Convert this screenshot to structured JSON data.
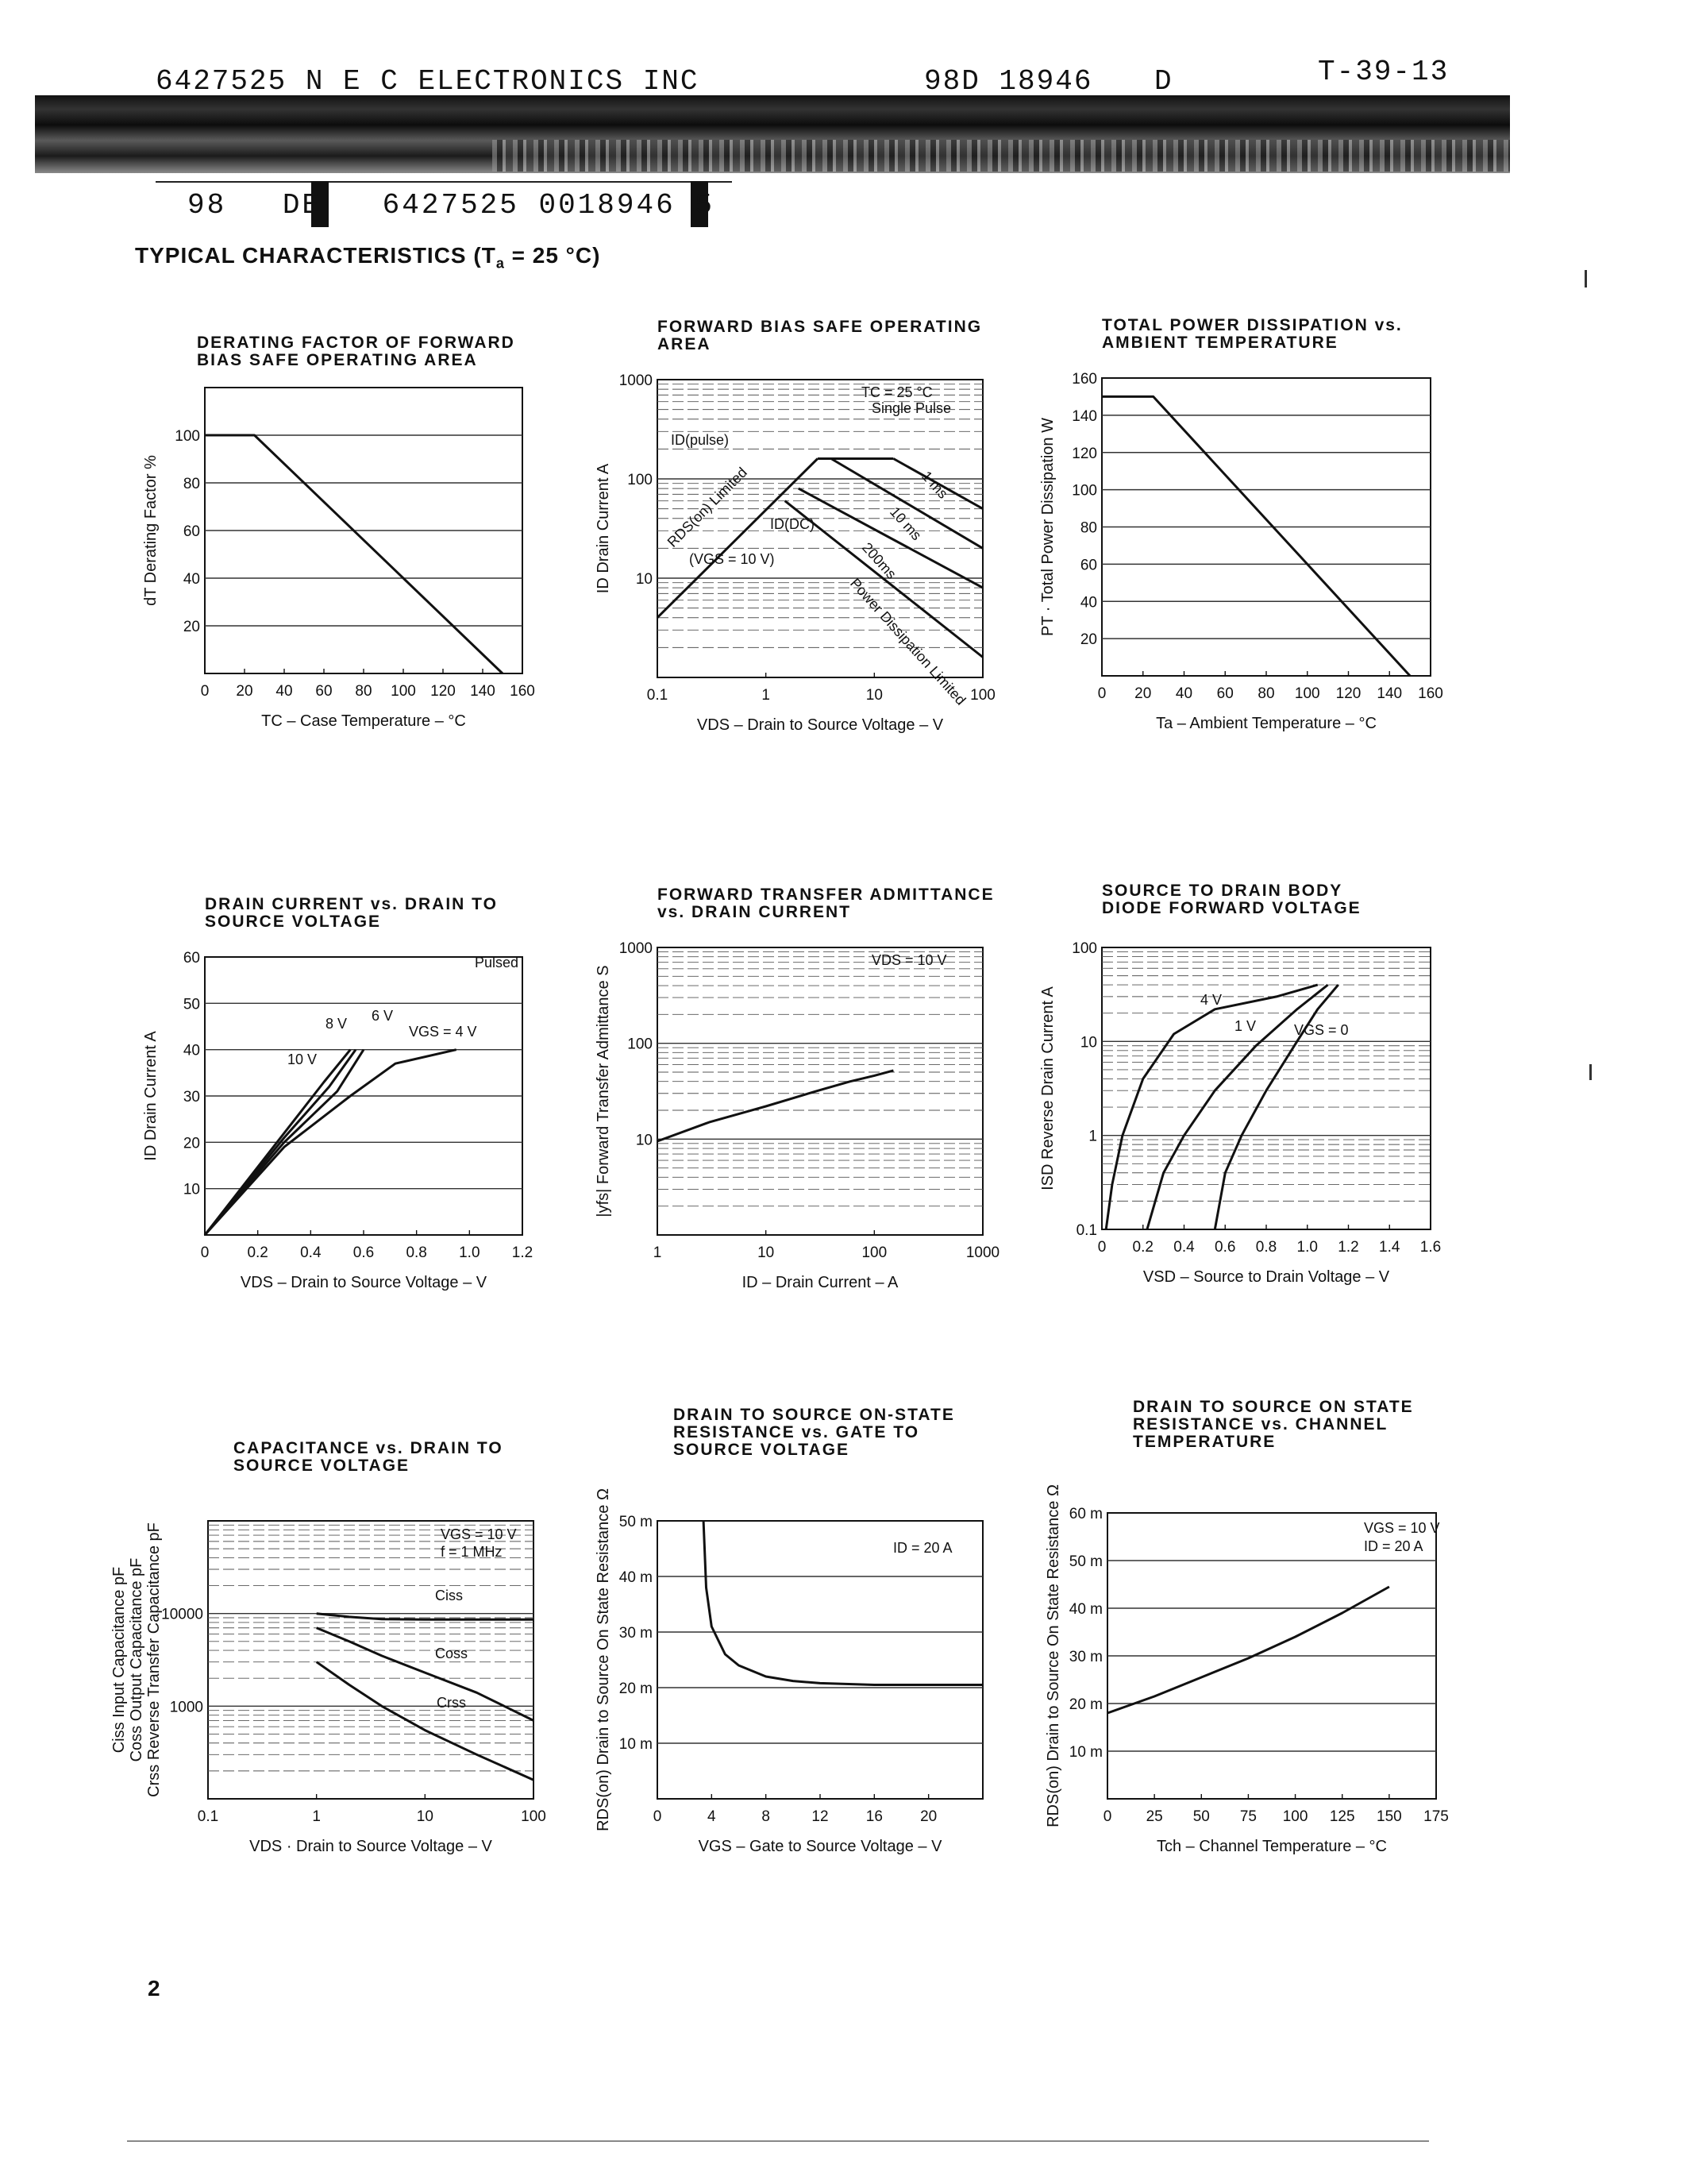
{
  "header": {
    "company": "6427525 N E C ELECTRONICS INC",
    "code": "98D 18946",
    "d": "D",
    "tcode": "T-39-13",
    "line2_a": "98",
    "line2_b": "DE",
    "line2_c": "6427525 0018946 5"
  },
  "section_title": "TYPICAL CHARACTERISTICS (T",
  "section_sub": "a",
  "section_tail": " = 25 °C)",
  "page_number": "2",
  "chart_data": [
    {
      "type": "line",
      "title": [
        "DERATING FACTOR OF FORWARD",
        "BIAS SAFE OPERATING AREA"
      ],
      "xlabel": "TC – Case Temperature – °C",
      "ylabel": "dT  Derating Factor  %",
      "xlim": [
        0,
        160
      ],
      "ylim": [
        0,
        120
      ],
      "xscale": "linear",
      "yscale": "linear",
      "xticks": [
        0,
        20,
        40,
        60,
        80,
        100,
        120,
        140,
        160
      ],
      "yticks": [
        20,
        40,
        60,
        80,
        100
      ],
      "grid": "horizontal",
      "series": [
        {
          "x": [
            0,
            25,
            150
          ],
          "y": [
            100,
            100,
            0
          ]
        }
      ]
    },
    {
      "type": "line",
      "title": [
        "FORWARD BIAS SAFE OPERATING",
        "AREA"
      ],
      "xlabel": "VDS – Drain to Source Voltage – V",
      "ylabel": "ID  Drain Current  A",
      "xlim": [
        0.1,
        100
      ],
      "ylim": [
        1,
        1000
      ],
      "xscale": "log",
      "yscale": "log",
      "xticks": [
        0.1,
        1,
        10,
        100
      ],
      "xticklabels": [
        "0.1",
        "1",
        "10",
        "100"
      ],
      "yticks": [
        10,
        100,
        1000
      ],
      "yticklabels": [
        "10",
        "100",
        "1000"
      ],
      "grid": "horizontal",
      "annotations": [
        "TC = 25 °C",
        "Single Pulse",
        "ID(pulse)",
        "ID(DC)",
        "RDS(on) Limited",
        "(VGS = 10 V)",
        "1 ms",
        "10 ms",
        "200ms",
        "Power Dissipation Limited"
      ],
      "series": [
        {
          "name": "RDS(on) Limited",
          "x": [
            0.1,
            3
          ],
          "y": [
            4,
            160
          ]
        },
        {
          "name": "ID(pulse)",
          "x": [
            3,
            15
          ],
          "y": [
            160,
            160
          ]
        },
        {
          "name": "1 ms",
          "x": [
            15,
            100
          ],
          "y": [
            160,
            50
          ]
        },
        {
          "name": "10 ms",
          "x": [
            4,
            100
          ],
          "y": [
            160,
            20
          ]
        },
        {
          "name": "200ms",
          "x": [
            2,
            100
          ],
          "y": [
            80,
            8
          ]
        },
        {
          "name": "Power Dissipation Limited",
          "x": [
            1.5,
            100
          ],
          "y": [
            60,
            1.6
          ]
        }
      ]
    },
    {
      "type": "line",
      "title": [
        "TOTAL POWER DISSIPATION vs.",
        "AMBIENT TEMPERATURE"
      ],
      "xlabel": "Ta – Ambient Temperature – °C",
      "ylabel": "PT · Total Power Dissipation  W",
      "xlim": [
        0,
        160
      ],
      "ylim": [
        0,
        160
      ],
      "xscale": "linear",
      "yscale": "linear",
      "xticks": [
        0,
        20,
        40,
        60,
        80,
        100,
        120,
        140,
        160
      ],
      "yticks": [
        20,
        40,
        60,
        80,
        100,
        120,
        140,
        160
      ],
      "grid": "horizontal",
      "series": [
        {
          "x": [
            0,
            25,
            150
          ],
          "y": [
            150,
            150,
            0
          ]
        }
      ]
    },
    {
      "type": "line",
      "title": [
        "DRAIN CURRENT vs. DRAIN TO",
        "SOURCE VOLTAGE"
      ],
      "xlabel": "VDS – Drain to Source Voltage – V",
      "ylabel": "ID  Drain Current  A",
      "xlim": [
        0,
        1.2
      ],
      "ylim": [
        0,
        60
      ],
      "xscale": "linear",
      "yscale": "linear",
      "xticks": [
        0,
        0.2,
        0.4,
        0.6,
        0.8,
        1.0,
        1.2
      ],
      "xticklabels": [
        "0",
        "0.2",
        "0.4",
        "0.6",
        "0.8",
        "1.0",
        "1.2"
      ],
      "yticks": [
        10,
        20,
        30,
        40,
        50,
        60
      ],
      "grid": "horizontal",
      "annotations": [
        "Pulsed",
        "8 V",
        "6 V",
        "VGS = 4 V",
        "10 V"
      ],
      "series": [
        {
          "name": "10 V",
          "x": [
            0,
            0.3,
            0.45,
            0.55
          ],
          "y": [
            0,
            22,
            33,
            40
          ]
        },
        {
          "name": "8 V",
          "x": [
            0,
            0.3,
            0.47,
            0.57
          ],
          "y": [
            0,
            21,
            32,
            40
          ]
        },
        {
          "name": "6 V",
          "x": [
            0,
            0.3,
            0.5,
            0.6
          ],
          "y": [
            0,
            20,
            31,
            40
          ]
        },
        {
          "name": "VGS = 4 V",
          "x": [
            0,
            0.3,
            0.55,
            0.72,
            0.95
          ],
          "y": [
            0,
            19,
            30,
            37,
            40
          ]
        }
      ]
    },
    {
      "type": "line",
      "title": [
        "FORWARD TRANSFER ADMITTANCE",
        "vs. DRAIN CURRENT"
      ],
      "xlabel": "ID – Drain Current – A",
      "ylabel": "|yfs|  Forward Transfer Admittance  S",
      "xlim": [
        1,
        1000
      ],
      "ylim": [
        1,
        1000
      ],
      "xscale": "log",
      "yscale": "log",
      "xticks": [
        1,
        10,
        100,
        1000
      ],
      "xticklabels": [
        "1",
        "10",
        "100",
        "1000"
      ],
      "yticks": [
        10,
        100,
        1000
      ],
      "yticklabels": [
        "10",
        "100",
        "1000"
      ],
      "grid": "horizontal",
      "annotations": [
        "VDS = 10 V"
      ],
      "series": [
        {
          "x": [
            1,
            3,
            10,
            30,
            60,
            100,
            150
          ],
          "y": [
            9.5,
            15,
            22,
            32,
            40,
            46,
            52
          ]
        }
      ]
    },
    {
      "type": "line",
      "title": [
        "SOURCE TO DRAIN BODY",
        "DIODE FORWARD VOLTAGE"
      ],
      "xlabel": "VSD – Source to Drain Voltage – V",
      "ylabel": "ISD  Reverse Drain Current  A",
      "xlim": [
        0,
        1.6
      ],
      "ylim": [
        0.1,
        100
      ],
      "xscale": "linear",
      "yscale": "log",
      "xticks": [
        0,
        0.2,
        0.4,
        0.6,
        0.8,
        1.0,
        1.2,
        1.4,
        1.6
      ],
      "xticklabels": [
        "0",
        "0.2",
        "0.4",
        "0.6",
        "0.8",
        "1.0",
        "1.2",
        "1.4",
        "1.6"
      ],
      "yticks": [
        0.1,
        1,
        10,
        100
      ],
      "yticklabels": [
        "0.1",
        "1",
        "10",
        "100"
      ],
      "grid": "horizontal",
      "annotations": [
        "4 V",
        "1 V",
        "VGS = 0"
      ],
      "series": [
        {
          "name": "4 V",
          "x": [
            0.02,
            0.05,
            0.1,
            0.2,
            0.35,
            0.55,
            0.85,
            1.05
          ],
          "y": [
            0.1,
            0.3,
            1,
            4,
            12,
            22,
            30,
            40
          ]
        },
        {
          "name": "1 V",
          "x": [
            0.22,
            0.3,
            0.4,
            0.55,
            0.75,
            0.95,
            1.1
          ],
          "y": [
            0.1,
            0.4,
            1,
            3,
            9,
            22,
            40
          ]
        },
        {
          "name": "VGS = 0",
          "x": [
            0.55,
            0.6,
            0.68,
            0.8,
            0.95,
            1.05,
            1.15
          ],
          "y": [
            0.1,
            0.4,
            1,
            3,
            10,
            22,
            40
          ]
        }
      ]
    },
    {
      "type": "line",
      "title": [
        "CAPACITANCE vs. DRAIN TO",
        "SOURCE VOLTAGE"
      ],
      "xlabel": "VDS · Drain to Source Voltage – V",
      "ylabel": [
        "Ciss  Input Capacitance  pF",
        "Coss  Output Capacitance  pF",
        "Crss  Reverse Transfer Capacitance  pF"
      ],
      "xlim": [
        0.1,
        100
      ],
      "ylim": [
        100,
        100000
      ],
      "xscale": "log",
      "yscale": "log",
      "xticks": [
        0.1,
        1,
        10,
        100
      ],
      "xticklabels": [
        "0.1",
        "1",
        "10",
        "100"
      ],
      "yticks": [
        1000,
        10000
      ],
      "yticklabels": [
        "1000",
        "10000"
      ],
      "grid": "horizontal",
      "annotations": [
        "VGS = 10 V",
        "f = 1 MHz"
      ],
      "series": [
        {
          "name": "Ciss",
          "x": [
            1,
            2,
            4,
            10,
            30,
            100
          ],
          "y": [
            10000,
            9200,
            8700,
            8600,
            8600,
            8600
          ]
        },
        {
          "name": "Coss",
          "x": [
            1,
            2,
            4,
            10,
            30,
            100
          ],
          "y": [
            7000,
            5000,
            3500,
            2300,
            1400,
            700
          ]
        },
        {
          "name": "Crss",
          "x": [
            1,
            2,
            4,
            10,
            30,
            100
          ],
          "y": [
            3000,
            1700,
            1000,
            550,
            300,
            160
          ]
        }
      ]
    },
    {
      "type": "line",
      "title": [
        "DRAIN TO SOURCE ON-STATE",
        "RESISTANCE vs. GATE TO",
        "SOURCE VOLTAGE"
      ],
      "xlabel": "VGS – Gate to Source Voltage – V",
      "ylabel": "RDS(on)  Drain to Source On State Resistance  Ω",
      "xlim": [
        0,
        24
      ],
      "ylim": [
        0,
        50
      ],
      "xscale": "linear",
      "yscale": "linear",
      "xticks": [
        0,
        4,
        8,
        12,
        16,
        20
      ],
      "yticks": [
        10,
        20,
        30,
        40,
        50
      ],
      "yticklabels": [
        "10 m",
        "20 m",
        "30 m",
        "40 m",
        "50 m"
      ],
      "grid": "horizontal",
      "annotations": [
        "ID = 20 A"
      ],
      "series": [
        {
          "x": [
            3.4,
            3.6,
            4,
            5,
            6,
            8,
            10,
            12,
            16,
            20,
            24
          ],
          "y": [
            50,
            38,
            31,
            26,
            24,
            22,
            21.2,
            20.8,
            20.5,
            20.5,
            20.5
          ]
        }
      ]
    },
    {
      "type": "line",
      "title": [
        "DRAIN TO SOURCE ON STATE",
        "RESISTANCE vs. CHANNEL",
        "TEMPERATURE"
      ],
      "xlabel": "Tch – Channel Temperature – °C",
      "ylabel": "RDS(on)  Drain to Source On State Resistance  Ω",
      "xlim": [
        0,
        175
      ],
      "ylim": [
        0,
        60
      ],
      "xscale": "linear",
      "yscale": "linear",
      "xticks": [
        0,
        25,
        50,
        75,
        100,
        125,
        150,
        175
      ],
      "yticks": [
        10,
        20,
        30,
        40,
        50,
        60
      ],
      "yticklabels": [
        "10 m",
        "20 m",
        "30 m",
        "40 m",
        "50 m",
        "60 m"
      ],
      "grid": "horizontal",
      "annotations": [
        "VGS = 10 V",
        "ID = 20 A"
      ],
      "series": [
        {
          "x": [
            0,
            25,
            50,
            75,
            100,
            125,
            150
          ],
          "y": [
            18,
            21.5,
            25.5,
            29.5,
            34,
            39,
            44.5
          ]
        }
      ]
    }
  ]
}
